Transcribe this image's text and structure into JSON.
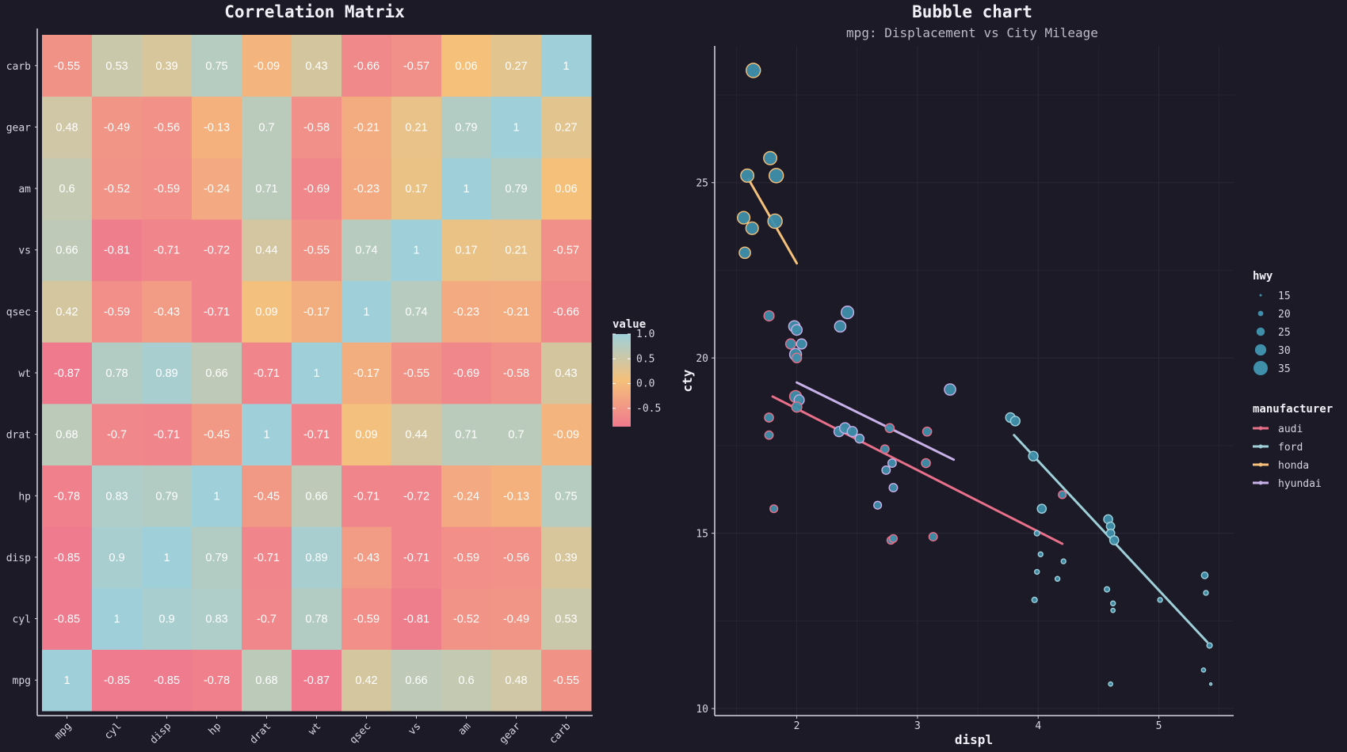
{
  "colors": {
    "background": "#1c1a26",
    "low": "#ef7a8e",
    "mid": "#f5c07a",
    "high": "#9fd0da",
    "bubble": "#3f8fab",
    "grid": "#2a2836"
  },
  "chart_data": [
    {
      "type": "heatmap",
      "title": "Correlation Matrix",
      "variables": [
        "mpg",
        "cyl",
        "disp",
        "hp",
        "drat",
        "wt",
        "qsec",
        "vs",
        "am",
        "gear",
        "carb"
      ],
      "legend": {
        "title": "value",
        "ticks": [
          1.0,
          0.5,
          0.0,
          -0.5
        ],
        "tick_labels": [
          "1.0",
          "0.5",
          "0.0",
          "-0.5"
        ],
        "range": [
          -0.87,
          1.0
        ],
        "position": "right"
      },
      "matrix": [
        [
          1,
          -0.85,
          -0.85,
          -0.78,
          0.68,
          -0.87,
          0.42,
          0.66,
          0.6,
          0.48,
          -0.55
        ],
        [
          -0.85,
          1,
          0.9,
          0.83,
          -0.7,
          0.78,
          -0.59,
          -0.81,
          -0.52,
          -0.49,
          0.53
        ],
        [
          -0.85,
          0.9,
          1,
          0.79,
          -0.71,
          0.89,
          -0.43,
          -0.71,
          -0.59,
          -0.56,
          0.39
        ],
        [
          -0.78,
          0.83,
          0.79,
          1,
          -0.45,
          0.66,
          -0.71,
          -0.72,
          -0.24,
          -0.13,
          0.75
        ],
        [
          0.68,
          -0.7,
          -0.71,
          -0.45,
          1,
          -0.71,
          0.09,
          0.44,
          0.71,
          0.7,
          -0.09
        ],
        [
          -0.87,
          0.78,
          0.89,
          0.66,
          -0.71,
          1,
          -0.17,
          -0.55,
          -0.69,
          -0.58,
          0.43
        ],
        [
          0.42,
          -0.59,
          -0.43,
          -0.71,
          0.09,
          -0.17,
          1,
          0.74,
          -0.23,
          -0.21,
          -0.66
        ],
        [
          0.66,
          -0.81,
          -0.71,
          -0.72,
          0.44,
          -0.55,
          0.74,
          1,
          0.17,
          0.21,
          -0.57
        ],
        [
          0.6,
          -0.52,
          -0.59,
          -0.24,
          0.71,
          -0.69,
          -0.23,
          0.17,
          1,
          0.79,
          0.06
        ],
        [
          0.48,
          -0.49,
          -0.56,
          -0.13,
          0.7,
          -0.58,
          -0.21,
          0.21,
          0.79,
          1,
          0.27
        ],
        [
          -0.55,
          0.53,
          0.39,
          0.75,
          -0.09,
          0.43,
          -0.66,
          -0.57,
          0.06,
          0.27,
          1
        ]
      ]
    },
    {
      "type": "scatter",
      "title": "Bubble chart",
      "subtitle": "mpg: Displacement vs City Mileage",
      "xlabel": "displ",
      "ylabel": "cty",
      "xlim": [
        1.32,
        5.62
      ],
      "ylim": [
        9.8,
        28.9
      ],
      "xticks": [
        2,
        3,
        4,
        5
      ],
      "yticks": [
        10,
        15,
        20,
        25
      ],
      "size_legend": {
        "title": "hwy",
        "values": [
          15,
          20,
          25,
          30,
          35
        ]
      },
      "color_legend": {
        "title": "manufacturer",
        "items": [
          {
            "name": "audi",
            "color": "#e8708a"
          },
          {
            "name": "ford",
            "color": "#9fd0da"
          },
          {
            "name": "honda",
            "color": "#f5c07a"
          },
          {
            "name": "hyundai",
            "color": "#c8b0e8"
          }
        ]
      },
      "trend_lines": [
        {
          "manufacturer": "audi",
          "x1": 1.8,
          "y1": 18.9,
          "x2": 4.2,
          "y2": 14.7
        },
        {
          "manufacturer": "ford",
          "x1": 3.8,
          "y1": 17.8,
          "x2": 5.4,
          "y2": 11.9
        },
        {
          "manufacturer": "honda",
          "x1": 1.6,
          "y1": 25.1,
          "x2": 2.0,
          "y2": 22.7
        },
        {
          "manufacturer": "hyundai",
          "x1": 2.0,
          "y1": 19.3,
          "x2": 3.3,
          "y2": 17.1
        }
      ],
      "points": [
        {
          "x": 1.64,
          "y": 28.2,
          "hwy": 35,
          "m": "honda"
        },
        {
          "x": 1.59,
          "y": 25.2,
          "hwy": 33,
          "m": "honda"
        },
        {
          "x": 1.78,
          "y": 25.7,
          "hwy": 33,
          "m": "honda"
        },
        {
          "x": 1.83,
          "y": 25.2,
          "hwy": 35,
          "m": "honda"
        },
        {
          "x": 1.56,
          "y": 24.0,
          "hwy": 32,
          "m": "honda"
        },
        {
          "x": 1.63,
          "y": 23.7,
          "hwy": 32,
          "m": "honda"
        },
        {
          "x": 1.82,
          "y": 23.9,
          "hwy": 35,
          "m": "honda"
        },
        {
          "x": 1.57,
          "y": 23.0,
          "hwy": 30,
          "m": "honda"
        },
        {
          "x": 1.77,
          "y": 21.2,
          "hwy": 28,
          "m": "audi"
        },
        {
          "x": 1.98,
          "y": 20.9,
          "hwy": 30,
          "m": "hyundai"
        },
        {
          "x": 2.0,
          "y": 20.8,
          "hwy": 29,
          "m": "hyundai"
        },
        {
          "x": 1.95,
          "y": 20.4,
          "hwy": 28,
          "m": "audi"
        },
        {
          "x": 2.04,
          "y": 20.4,
          "hwy": 28,
          "m": "hyundai"
        },
        {
          "x": 1.99,
          "y": 20.1,
          "hwy": 31,
          "m": "hyundai"
        },
        {
          "x": 2.0,
          "y": 20.0,
          "hwy": 27,
          "m": "audi"
        },
        {
          "x": 2.36,
          "y": 20.9,
          "hwy": 30,
          "m": "hyundai"
        },
        {
          "x": 2.42,
          "y": 21.3,
          "hwy": 32,
          "m": "hyundai"
        },
        {
          "x": 3.27,
          "y": 19.1,
          "hwy": 30,
          "m": "hyundai"
        },
        {
          "x": 1.99,
          "y": 18.9,
          "hwy": 31,
          "m": "audi"
        },
        {
          "x": 2.02,
          "y": 18.8,
          "hwy": 28,
          "m": "hyundai"
        },
        {
          "x": 2.0,
          "y": 18.6,
          "hwy": 28,
          "m": "audi"
        },
        {
          "x": 1.77,
          "y": 18.3,
          "hwy": 26,
          "m": "audi"
        },
        {
          "x": 1.77,
          "y": 17.8,
          "hwy": 25,
          "m": "audi"
        },
        {
          "x": 2.35,
          "y": 17.9,
          "hwy": 28,
          "m": "hyundai"
        },
        {
          "x": 2.4,
          "y": 18.0,
          "hwy": 29,
          "m": "hyundai"
        },
        {
          "x": 2.46,
          "y": 17.9,
          "hwy": 28,
          "m": "hyundai"
        },
        {
          "x": 2.52,
          "y": 17.7,
          "hwy": 26,
          "m": "hyundai"
        },
        {
          "x": 2.77,
          "y": 18.0,
          "hwy": 26,
          "m": "audi"
        },
        {
          "x": 3.08,
          "y": 17.9,
          "hwy": 26,
          "m": "audi"
        },
        {
          "x": 2.73,
          "y": 17.4,
          "hwy": 25,
          "m": "audi"
        },
        {
          "x": 2.79,
          "y": 17.0,
          "hwy": 25,
          "m": "hyundai"
        },
        {
          "x": 3.07,
          "y": 17.0,
          "hwy": 26,
          "m": "audi"
        },
        {
          "x": 2.74,
          "y": 16.8,
          "hwy": 25,
          "m": "hyundai"
        },
        {
          "x": 2.8,
          "y": 16.3,
          "hwy": 25,
          "m": "hyundai"
        },
        {
          "x": 2.67,
          "y": 15.8,
          "hwy": 24,
          "m": "hyundai"
        },
        {
          "x": 1.81,
          "y": 15.7,
          "hwy": 24,
          "m": "audi"
        },
        {
          "x": 2.78,
          "y": 14.8,
          "hwy": 24,
          "m": "audi"
        },
        {
          "x": 2.8,
          "y": 14.85,
          "hwy": 24,
          "m": "audi"
        },
        {
          "x": 3.13,
          "y": 14.9,
          "hwy": 25,
          "m": "audi"
        },
        {
          "x": 3.77,
          "y": 18.3,
          "hwy": 27,
          "m": "ford"
        },
        {
          "x": 3.81,
          "y": 18.2,
          "hwy": 27,
          "m": "ford"
        },
        {
          "x": 3.96,
          "y": 17.2,
          "hwy": 27,
          "m": "ford"
        },
        {
          "x": 4.03,
          "y": 15.7,
          "hwy": 26,
          "m": "ford"
        },
        {
          "x": 4.2,
          "y": 16.1,
          "hwy": 24,
          "m": "audi"
        },
        {
          "x": 3.99,
          "y": 15.0,
          "hwy": 20,
          "m": "ford"
        },
        {
          "x": 4.02,
          "y": 14.4,
          "hwy": 19,
          "m": "ford"
        },
        {
          "x": 4.21,
          "y": 14.2,
          "hwy": 19,
          "m": "ford"
        },
        {
          "x": 3.99,
          "y": 13.9,
          "hwy": 19,
          "m": "ford"
        },
        {
          "x": 4.16,
          "y": 13.7,
          "hwy": 19,
          "m": "ford"
        },
        {
          "x": 3.97,
          "y": 13.1,
          "hwy": 20,
          "m": "ford"
        },
        {
          "x": 4.58,
          "y": 15.4,
          "hwy": 26,
          "m": "ford"
        },
        {
          "x": 4.6,
          "y": 15.2,
          "hwy": 25,
          "m": "ford"
        },
        {
          "x": 4.6,
          "y": 15.0,
          "hwy": 25,
          "m": "ford"
        },
        {
          "x": 4.63,
          "y": 14.8,
          "hwy": 26,
          "m": "ford"
        },
        {
          "x": 4.57,
          "y": 13.4,
          "hwy": 20,
          "m": "ford"
        },
        {
          "x": 4.62,
          "y": 13.0,
          "hwy": 19,
          "m": "ford"
        },
        {
          "x": 4.62,
          "y": 12.8,
          "hwy": 18,
          "m": "ford"
        },
        {
          "x": 5.01,
          "y": 13.1,
          "hwy": 19,
          "m": "ford"
        },
        {
          "x": 5.38,
          "y": 13.8,
          "hwy": 22,
          "m": "ford"
        },
        {
          "x": 5.39,
          "y": 13.3,
          "hwy": 19,
          "m": "ford"
        },
        {
          "x": 5.42,
          "y": 11.8,
          "hwy": 20,
          "m": "ford"
        },
        {
          "x": 5.37,
          "y": 11.1,
          "hwy": 18,
          "m": "ford"
        },
        {
          "x": 4.6,
          "y": 10.7,
          "hwy": 18,
          "m": "ford"
        },
        {
          "x": 5.43,
          "y": 10.7,
          "hwy": 15,
          "m": "ford"
        }
      ]
    }
  ]
}
